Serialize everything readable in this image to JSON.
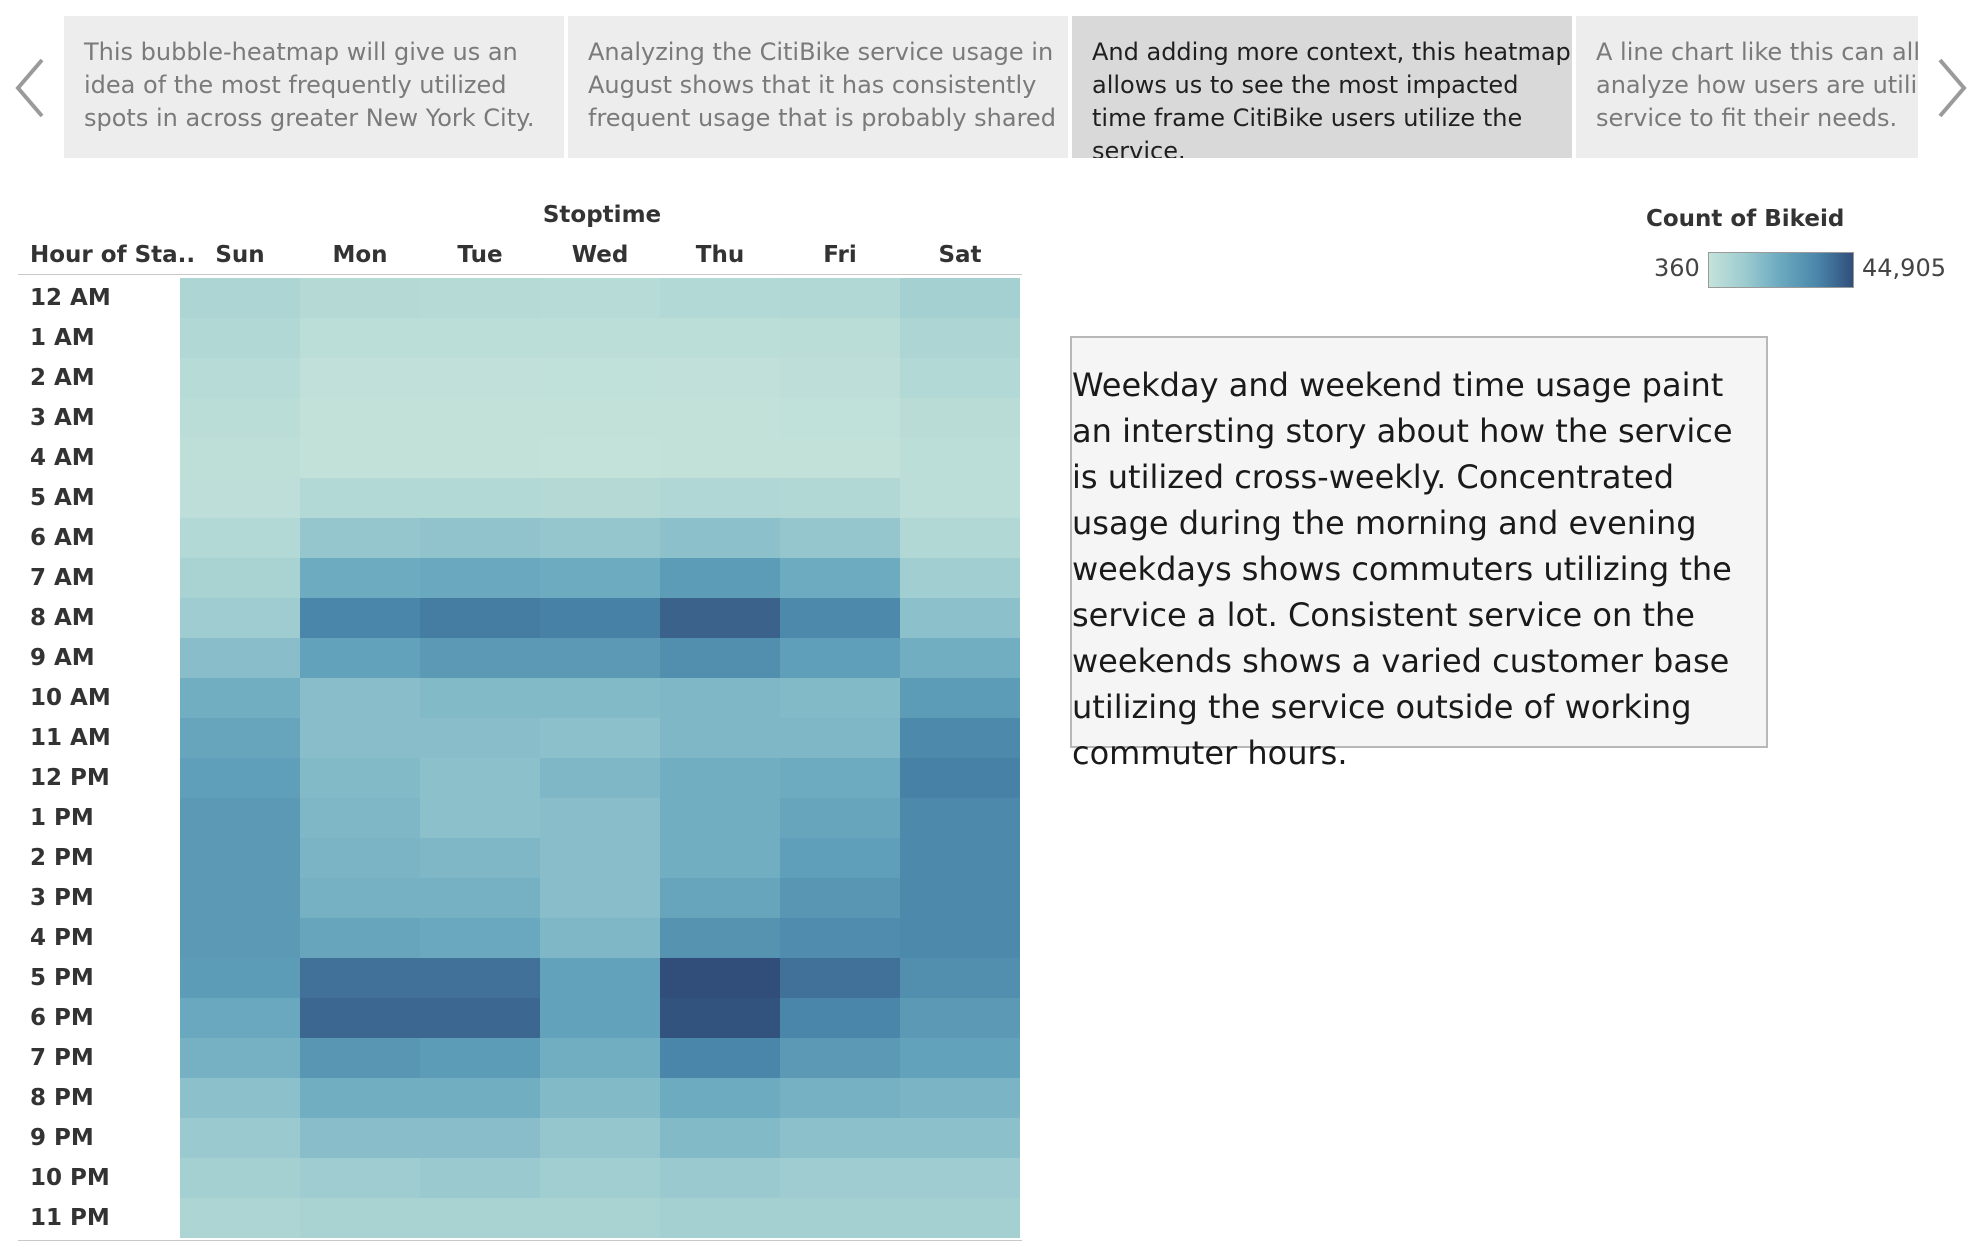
{
  "navigation": {
    "prev_icon": "chevron-left-icon",
    "next_icon": "chevron-right-icon"
  },
  "story_points": [
    {
      "text": "This bubble-heatmap will give us an idea of the most frequently utilized spots in across greater New York City.",
      "active": false
    },
    {
      "text": "Analyzing the CitiBike service usage in August  shows that it has consistently frequent usage that is probably shared",
      "active": false
    },
    {
      "text": "And adding more context, this heatmap allows us to see the most impacted time frame CitiBike users utilize the service.",
      "active": true
    },
    {
      "text": "A line chart like this can allow us to analyze how users are utilizing the service to fit their needs.",
      "active": false
    }
  ],
  "note": {
    "text": "Weekday and weekend time usage paint an intersting story about how the service is utilized cross-weekly. Concentrated usage during the morning and evening weekdays shows commuters utilizing the service a lot. Consistent service on the weekends shows a varied customer base utilizing the service outside of working commuter hours."
  },
  "legend": {
    "title": "Count of Bikeid",
    "min_label": "360",
    "max_label": "44,905",
    "colors": [
      "#c4e3da",
      "#9ccbd0",
      "#6aa9bf",
      "#4a87aa",
      "#314e7b"
    ]
  },
  "chart_data": {
    "type": "heatmap",
    "title": "Stoptime",
    "row_header": "Hour of Sta..",
    "columns": [
      "Sun",
      "Mon",
      "Tue",
      "Wed",
      "Thu",
      "Fri",
      "Sat"
    ],
    "rows": [
      "12 AM",
      "1 AM",
      "2 AM",
      "3 AM",
      "4 AM",
      "5 AM",
      "6 AM",
      "7 AM",
      "8 AM",
      "9 AM",
      "10 AM",
      "11 AM",
      "12 PM",
      "1 PM",
      "2 PM",
      "3 PM",
      "4 PM",
      "5 PM",
      "6 PM",
      "7 PM",
      "8 PM",
      "9 PM",
      "10 PM",
      "11 PM"
    ],
    "color_scale": {
      "min": 360,
      "max": 44905
    },
    "values": [
      [
        7000,
        4500,
        4200,
        3900,
        5000,
        5500,
        9000
      ],
      [
        5500,
        2600,
        2800,
        2500,
        2800,
        3000,
        7000
      ],
      [
        4000,
        1600,
        1600,
        1400,
        1600,
        2000,
        5000
      ],
      [
        3000,
        1100,
        1100,
        1000,
        1200,
        1400,
        3500
      ],
      [
        2200,
        1000,
        1000,
        900,
        1100,
        1200,
        2500
      ],
      [
        2000,
        5000,
        5000,
        4500,
        6000,
        5500,
        2500
      ],
      [
        5000,
        13000,
        14000,
        13000,
        15000,
        13000,
        5500
      ],
      [
        8000,
        22000,
        23000,
        22000,
        27000,
        22000,
        10000
      ],
      [
        11000,
        34000,
        36000,
        35000,
        41000,
        33000,
        15000
      ],
      [
        16000,
        25000,
        28000,
        28000,
        31000,
        26000,
        21000
      ],
      [
        21000,
        16000,
        17000,
        17000,
        18000,
        17000,
        27000
      ],
      [
        24000,
        16000,
        16000,
        15000,
        18000,
        18000,
        33000
      ],
      [
        26000,
        17000,
        15000,
        18000,
        21000,
        22000,
        35000
      ],
      [
        28000,
        18000,
        15000,
        16000,
        21000,
        24000,
        33000
      ],
      [
        28000,
        19000,
        18000,
        16000,
        21000,
        26000,
        33000
      ],
      [
        28000,
        20000,
        20000,
        16000,
        24000,
        29000,
        33000
      ],
      [
        28000,
        24000,
        23000,
        18000,
        30000,
        32000,
        33000
      ],
      [
        27000,
        38000,
        38000,
        25000,
        44905,
        38000,
        31000
      ],
      [
        23000,
        40000,
        40000,
        25000,
        44000,
        34000,
        28000
      ],
      [
        20000,
        29000,
        27000,
        21000,
        34000,
        28000,
        25000
      ],
      [
        15000,
        21000,
        21000,
        17000,
        22000,
        20000,
        19000
      ],
      [
        12000,
        16000,
        16000,
        13000,
        17000,
        15000,
        15000
      ],
      [
        9000,
        11000,
        12000,
        10000,
        12000,
        11000,
        11000
      ],
      [
        7000,
        8000,
        8000,
        8000,
        9000,
        9000,
        9000
      ]
    ]
  }
}
